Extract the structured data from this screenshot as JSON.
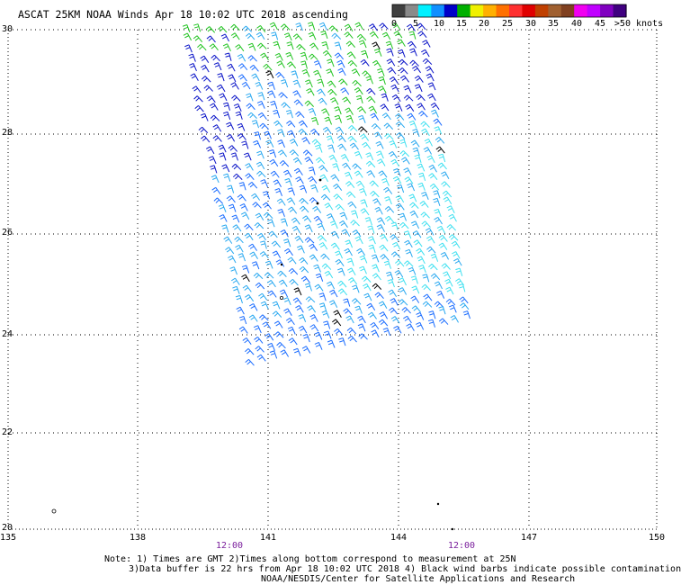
{
  "title": "ASCAT 25KM NOAA Winds Apr 18 10:02 UTC 2018 ascending",
  "color_scale": {
    "labels": [
      "0",
      "5",
      "10",
      "15",
      "20",
      "25",
      "30",
      "35",
      "40",
      "45",
      ">50 knots"
    ],
    "colors": [
      "#404040",
      "#8a8a8a",
      "#00f0ff",
      "#1090ff",
      "#0000c8",
      "#00b000",
      "#f0f000",
      "#ffb000",
      "#ff7000",
      "#ff3030",
      "#e00000",
      "#c04000",
      "#a06030",
      "#804020",
      "#f000f0",
      "#c000ff",
      "#8000c0",
      "#400080"
    ]
  },
  "map": {
    "lat_labels": [
      "30",
      "28",
      "26",
      "24",
      "22",
      "20"
    ],
    "lon_labels": [
      "135",
      "138",
      "141",
      "144",
      "147",
      "150"
    ],
    "pass_times": [
      "12:00",
      "12:00"
    ]
  },
  "notes": [
    "Note: 1) Times are GMT 2)Times along bottom correspond to measurement at 25N",
    "3)Data buffer is 22 hrs from Apr 18 10:02 UTC 2018 4) Black wind barbs indicate possible contamination",
    "NOAA/NESDIS/Center for Satellite Applications and Research"
  ],
  "wind_colors": {
    "green": "#22c422",
    "blue_dark": "#0a14c8",
    "blue_mid": "#1a6cff",
    "sky": "#28a8f0",
    "cyan": "#3ee0f0",
    "black": "#000000"
  }
}
